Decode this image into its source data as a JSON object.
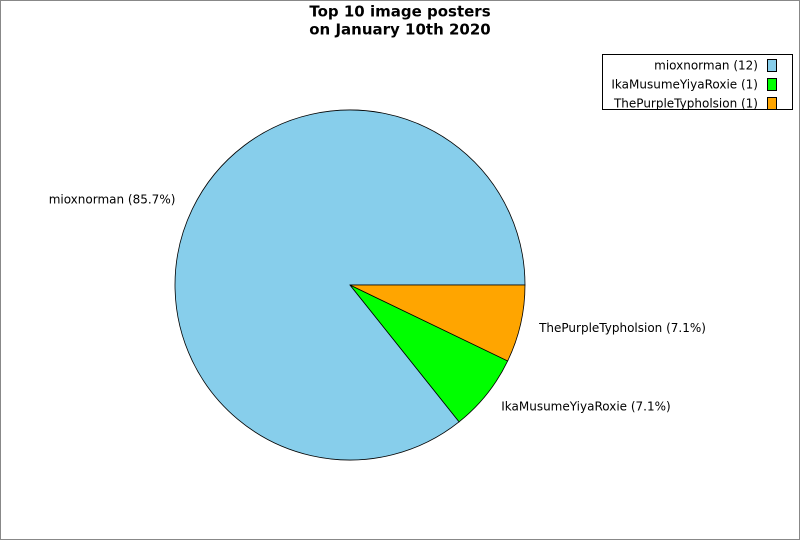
{
  "chart_data": {
    "type": "pie",
    "title": [
      "Top 10 image posters",
      "on January 10th 2020"
    ],
    "categories": [
      "mioxnorman",
      "IkaMusumeYiyaRoxie",
      "ThePurpleTypholsion"
    ],
    "values": [
      12,
      1,
      1
    ],
    "colors": [
      "#87ceeb",
      "#00ff00",
      "#ffa500"
    ],
    "legend_labels": [
      "mioxnorman (12)",
      "IkaMusumeYiyaRoxie (1)",
      "ThePurpleTypholsion (1)"
    ],
    "slice_labels": [
      "mioxnorman (85.7%)",
      "IkaMusumeYiyaRoxie (7.1%)",
      "ThePurpleTypholsion (7.1%)"
    ],
    "legend": "top-right"
  }
}
